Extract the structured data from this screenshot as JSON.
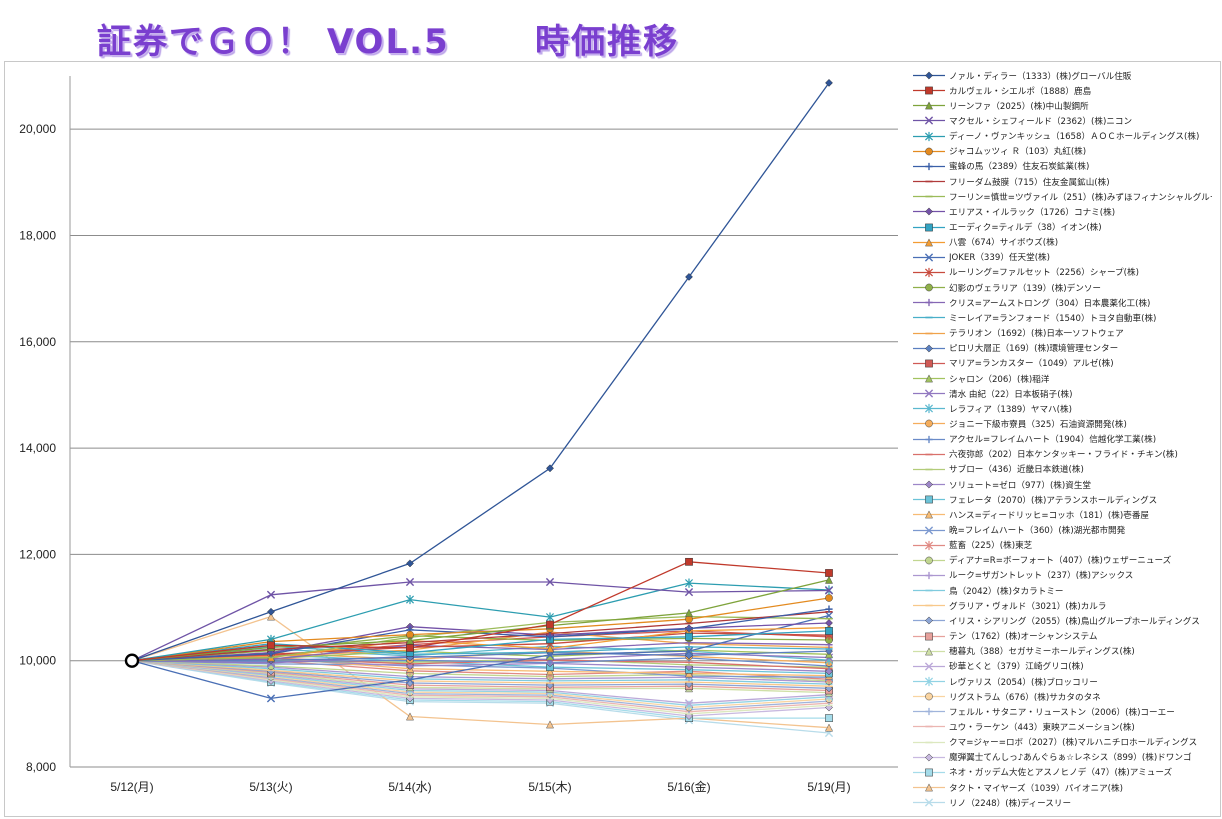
{
  "page": {
    "title_left": "証券でＧＯ！ VOL.5",
    "title_right": "時価推移"
  },
  "colors": {
    "gridline": "#8c8c8c",
    "axis": "#9a9a9a",
    "title": "#7a3fcf"
  },
  "chart_data": {
    "type": "line",
    "title": "",
    "xlabel": "",
    "ylabel": "",
    "categories": [
      "5/12(月)",
      "5/13(火)",
      "5/14(水)",
      "5/15(木)",
      "5/16(金)",
      "5/19(月)"
    ],
    "ylim": [
      8000,
      21000
    ],
    "yticks": [
      8000,
      10000,
      12000,
      14000,
      16000,
      18000,
      20000
    ],
    "ytick_labels": [
      "8,000",
      "10,000",
      "12,000",
      "14,000",
      "16,000",
      "18,000",
      "20,000"
    ],
    "grid": true,
    "legend_position": "right",
    "series": [
      {
        "name": "ノァル・ディラー（1333）(株)グローバル住販",
        "color": "#2f5597",
        "marker": "diamond",
        "values": [
          10000,
          10920,
          11830,
          13620,
          17220,
          20870
        ]
      },
      {
        "name": "カルヴェル・シエルポ（1888）鹿島",
        "color": "#c0392b",
        "marker": "square",
        "values": [
          10000,
          10290,
          10240,
          10680,
          11860,
          11650
        ]
      },
      {
        "name": "リーンファ（2025）(株)中山製鋼所",
        "color": "#7ea33b",
        "marker": "triangle",
        "values": [
          10000,
          10250,
          10380,
          10660,
          10900,
          11520
        ]
      },
      {
        "name": "マクセル・シェフィールド（2362）(株)ニコン",
        "color": "#6f54a6",
        "marker": "x",
        "values": [
          10000,
          11240,
          11480,
          11480,
          11290,
          11320
        ]
      },
      {
        "name": "ディーノ・ヴァンキッシュ（1658）ＡＯＣホールディングス(株)",
        "color": "#2c9db0",
        "marker": "star",
        "values": [
          10000,
          10400,
          11150,
          10820,
          11460,
          11330
        ]
      },
      {
        "name": "ジャコムッツィ Ｒ（103）丸紅(株)",
        "color": "#e38a1f",
        "marker": "circle",
        "values": [
          10000,
          10360,
          10490,
          10600,
          10780,
          11180
        ]
      },
      {
        "name": "蜜蜂の馬（2389）住友石炭鉱業(株)",
        "color": "#3a5fa8",
        "marker": "plus",
        "values": [
          10000,
          10130,
          10580,
          10450,
          10600,
          10970
        ]
      },
      {
        "name": "フリーダム鼓膜（715）住友金属鉱山(株)",
        "color": "#b03a3a",
        "marker": "dash",
        "values": [
          10000,
          10210,
          10340,
          10510,
          10700,
          10920
        ]
      },
      {
        "name": "フーリン=慎世=ツヴァイル（251）(株)みずほフィナンシャルグループ",
        "color": "#9bbb59",
        "marker": "dash",
        "values": [
          10000,
          10060,
          10440,
          10720,
          10830,
          10790
        ]
      },
      {
        "name": "エリアス・イルラック（1726）コナミ(株)",
        "color": "#7452a8",
        "marker": "diamond",
        "values": [
          10000,
          10150,
          10640,
          10480,
          10610,
          10710
        ]
      },
      {
        "name": "エーディク=ティルデ（38）イオン(株)",
        "color": "#33a3c2",
        "marker": "square",
        "values": [
          10000,
          10320,
          10150,
          10400,
          10450,
          10560
        ]
      },
      {
        "name": "八雲（674）サイボウズ(株)",
        "color": "#f39c33",
        "marker": "triangle",
        "values": [
          10000,
          10060,
          10380,
          10230,
          10560,
          10620
        ]
      },
      {
        "name": "JOKER（339）任天堂(株)",
        "color": "#4a6fb5",
        "marker": "x",
        "values": [
          10000,
          9290,
          9640,
          10110,
          10180,
          10850
        ]
      },
      {
        "name": "ルーリング=ファルセット（2256）シャープ(株)",
        "color": "#c84b3e",
        "marker": "star",
        "values": [
          10000,
          10120,
          10250,
          10320,
          10520,
          10480
        ]
      },
      {
        "name": "幻影のヴェラリア（139）(株)デンソー",
        "color": "#8fb04a",
        "marker": "circle",
        "values": [
          10000,
          10190,
          10470,
          10380,
          10420,
          10390
        ]
      },
      {
        "name": "クリス=アームストロング（304）日本農薬化工(株)",
        "color": "#8567b4",
        "marker": "plus",
        "values": [
          10000,
          10030,
          10290,
          10210,
          10340,
          10300
        ]
      },
      {
        "name": "ミーレイア=ランフォード（1540）トヨタ自動車(株)",
        "color": "#49afc9",
        "marker": "dash",
        "values": [
          10000,
          10270,
          10120,
          10160,
          10260,
          10220
        ]
      },
      {
        "name": "テラリオン（1692）(株)日本一ソフトウェア",
        "color": "#f0a24b",
        "marker": "dash",
        "values": [
          10000,
          10080,
          10200,
          10540,
          10320,
          10250
        ]
      },
      {
        "name": "ピロリ大層正（169）(株)環境管理センター",
        "color": "#5a7fc0",
        "marker": "diamond",
        "values": [
          10000,
          10010,
          10060,
          10150,
          10100,
          10180
        ]
      },
      {
        "name": "マリア=ランカスター（1049）アルゼ(株)",
        "color": "#d05a55",
        "marker": "square",
        "values": [
          10000,
          10100,
          10300,
          10450,
          10560,
          10450
        ]
      },
      {
        "name": "シャロン（206）(株)稲洋",
        "color": "#a2c35f",
        "marker": "triangle",
        "values": [
          10000,
          10040,
          10180,
          10080,
          10200,
          10120
        ]
      },
      {
        "name": "清水 由紀（22）日本板硝子(株)",
        "color": "#9178c0",
        "marker": "x",
        "values": [
          10000,
          9960,
          10080,
          10020,
          10140,
          10060
        ]
      },
      {
        "name": "レラフィア（1389）ヤマハ(株)",
        "color": "#5bb8cf",
        "marker": "star",
        "values": [
          10000,
          10220,
          10090,
          10270,
          10180,
          10010
        ]
      },
      {
        "name": "ジョニー下級市寮員（325）石油資源開発(株)",
        "color": "#f5ad5c",
        "marker": "circle",
        "values": [
          10000,
          10150,
          10020,
          10180,
          10080,
          9960
        ]
      },
      {
        "name": "アクセル=フレイムハート（1904）信越化学工業(株)",
        "color": "#6a8bc8",
        "marker": "plus",
        "values": [
          10000,
          9980,
          10010,
          9960,
          10050,
          9900
        ]
      },
      {
        "name": "六夜弥郎（202）日本ケンタッキー・フライド・チキン(株)",
        "color": "#d9706b",
        "marker": "dash",
        "values": [
          10000,
          10050,
          9940,
          10010,
          9970,
          9850
        ]
      },
      {
        "name": "サブロー（436）近畿日本鉄道(株)",
        "color": "#b2cc79",
        "marker": "dash",
        "values": [
          10000,
          9990,
          9970,
          10030,
          9920,
          9880
        ]
      },
      {
        "name": "ソリュート=ゼロ（977）(株)資生堂",
        "color": "#9d86c8",
        "marker": "diamond",
        "values": [
          10000,
          10020,
          9900,
          9950,
          9880,
          9800
        ]
      },
      {
        "name": "フェレータ（2070）(株)アテランスホールディングス",
        "color": "#6cc3d8",
        "marker": "square",
        "values": [
          10000,
          10110,
          9990,
          9880,
          9830,
          9760
        ]
      },
      {
        "name": "ハンス=ディードリッヒ=コッホ（181）(株)壱番屋",
        "color": "#f7bb73",
        "marker": "triangle",
        "values": [
          10000,
          10050,
          9850,
          9800,
          9760,
          9720
        ]
      },
      {
        "name": "晩=フレイムハート（360）(株)湖光都市開発",
        "color": "#7b98cf",
        "marker": "x",
        "values": [
          10000,
          9940,
          9920,
          9860,
          9710,
          9690
        ]
      },
      {
        "name": "藍畜（225）(株)東芝",
        "color": "#e08a84",
        "marker": "star",
        "values": [
          10000,
          10000,
          9810,
          9740,
          9800,
          9650
        ]
      },
      {
        "name": "ディアナ=R=ボーフォート（407）(株)ウェザーニューズ",
        "color": "#c1d690",
        "marker": "circle",
        "values": [
          10000,
          9900,
          9760,
          9700,
          9740,
          9620
        ]
      },
      {
        "name": "ルーク=ザガントレット（237）(株)アシックス",
        "color": "#ac97d0",
        "marker": "plus",
        "values": [
          10000,
          9880,
          9700,
          9660,
          9690,
          9600
        ]
      },
      {
        "name": "鳥（2042）(株)タカラトミー",
        "color": "#7fcbde",
        "marker": "dash",
        "values": [
          10000,
          9850,
          9660,
          9620,
          9640,
          9560
        ]
      },
      {
        "name": "グラリア・ヴォルド（3021）(株)カルラ",
        "color": "#f8c88a",
        "marker": "dash",
        "values": [
          10000,
          9820,
          9620,
          9580,
          9600,
          9520
        ]
      },
      {
        "name": "イリス・シアリング（2055）(株)鳥山グループホールディングス",
        "color": "#8da5d5",
        "marker": "diamond",
        "values": [
          10000,
          9800,
          9580,
          9540,
          9560,
          9480
        ]
      },
      {
        "name": "テン（1762）(株)オーシャンシステム",
        "color": "#e6a19c",
        "marker": "square",
        "values": [
          10000,
          9780,
          9540,
          9500,
          9520,
          9440
        ]
      },
      {
        "name": "穂暮丸（388）セガサミーホールディングス(株)",
        "color": "#cfe0a7",
        "marker": "triangle",
        "values": [
          10000,
          9760,
          9500,
          9470,
          9480,
          9400
        ]
      },
      {
        "name": "砂華とくと（379）江崎グリコ(株)",
        "color": "#bba8d8",
        "marker": "x",
        "values": [
          10000,
          9740,
          9470,
          9440,
          9200,
          9360
        ]
      },
      {
        "name": "レヴァリス（2054）(株)ブロッコリー",
        "color": "#92d3e4",
        "marker": "star",
        "values": [
          10000,
          9720,
          9440,
          9410,
          9160,
          9320
        ]
      },
      {
        "name": "リグストラム（676）(株)サカタのタネ",
        "color": "#f9d4a1",
        "marker": "circle",
        "values": [
          10000,
          9700,
          9410,
          9380,
          9120,
          9280
        ]
      },
      {
        "name": "フェルル・サタニア・リューストン（2006）(株)コーエー",
        "color": "#a0b4db",
        "marker": "plus",
        "values": [
          10000,
          9680,
          9380,
          9350,
          9080,
          9240
        ]
      },
      {
        "name": "ユウ・ラーケン（443）東映アニメーション(株)",
        "color": "#ebb5b1",
        "marker": "dash",
        "values": [
          10000,
          9660,
          9350,
          9320,
          9040,
          9200
        ]
      },
      {
        "name": "クマ=ジャー=ロボ（2027）(株)マルハニチロホールディングス",
        "color": "#dce8bf",
        "marker": "dash",
        "values": [
          10000,
          9640,
          9320,
          9290,
          9000,
          9160
        ]
      },
      {
        "name": "魔弾翼士てんしっ♪あんぐらぁ☆レネシス（899）(株)ドワンゴ",
        "color": "#c8b9e0",
        "marker": "diamond",
        "values": [
          10000,
          9620,
          9290,
          9260,
          8960,
          9120
        ]
      },
      {
        "name": "ネオ・ガッデム大佐とアスノヒノデ（47）(株)アミューズ",
        "color": "#a5dcea",
        "marker": "square",
        "values": [
          10000,
          9600,
          9260,
          9230,
          8920,
          8920
        ]
      },
      {
        "name": "タクト・マイヤーズ（1039）パイオニア(株)",
        "color": "#f3c38f",
        "marker": "triangle",
        "values": [
          10000,
          10830,
          8950,
          8800,
          8920,
          8740
        ]
      },
      {
        "name": "リノ（2248）(株)ディースリー",
        "color": "#b8dcea",
        "marker": "x",
        "values": [
          10000,
          9580,
          9230,
          9200,
          8880,
          8640
        ]
      }
    ]
  }
}
